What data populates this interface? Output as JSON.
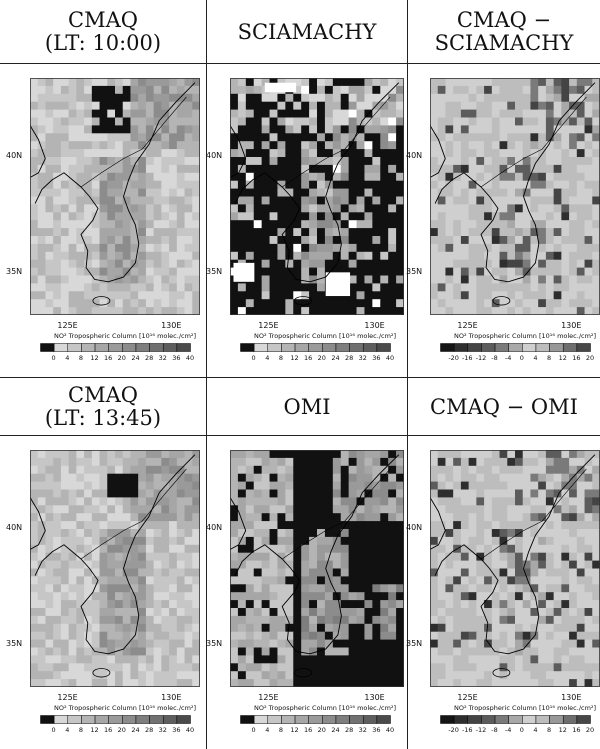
{
  "headers": {
    "row1": [
      "CMAQ\n(LT: 10:00)",
      "SCIAMACHY",
      "CMAQ −\nSCIAMACHY"
    ],
    "row2": [
      "CMAQ\n(LT: 13:45)",
      "OMI",
      "CMAQ − OMI"
    ]
  },
  "panels": [
    {
      "id": "cmaq-1000",
      "lat_labels": [
        "40N",
        "35N"
      ],
      "lon_labels": [
        "125E",
        "130E"
      ],
      "colorbar_title": "NO² Tropospheric Column [10¹⁶ molec./cm²]",
      "colorbar_ticks": [
        "0",
        "4",
        "8",
        "12",
        "16",
        "20",
        "24",
        "28",
        "32",
        "36",
        "40"
      ],
      "palette": "absolute",
      "style": "model"
    },
    {
      "id": "sciamachy",
      "lat_labels": [
        "40N",
        "35N"
      ],
      "lon_labels": [
        "125E",
        "130E"
      ],
      "colorbar_title": "NO² Tropospheric Column [10¹⁶ molec./cm²]",
      "colorbar_ticks": [
        "0",
        "4",
        "8",
        "12",
        "16",
        "20",
        "24",
        "28",
        "32",
        "36",
        "40"
      ],
      "palette": "absolute",
      "style": "satellite-sci"
    },
    {
      "id": "cmaq-minus-sciamachy",
      "lat_labels": [
        "40N",
        "35N"
      ],
      "lon_labels": [
        "125E",
        "130E"
      ],
      "colorbar_title": "NO² Tropospheric Column [10¹⁶ molec./cm²]",
      "colorbar_ticks": [
        "-20",
        "-16",
        "-12",
        "-8",
        "-4",
        "0",
        "4",
        "8",
        "12",
        "16",
        "20"
      ],
      "palette": "difference",
      "style": "diff"
    },
    {
      "id": "cmaq-1345",
      "lat_labels": [
        "40N",
        "35N"
      ],
      "lon_labels": [
        "125E",
        "130E"
      ],
      "colorbar_title": "NO² Tropospheric Column [10¹⁶ molec./cm²]",
      "colorbar_ticks": [
        "0",
        "4",
        "8",
        "12",
        "16",
        "20",
        "24",
        "28",
        "32",
        "36",
        "40"
      ],
      "palette": "absolute",
      "style": "model"
    },
    {
      "id": "omi",
      "lat_labels": [
        "40N",
        "35N"
      ],
      "lon_labels": [
        "125E",
        "130E"
      ],
      "colorbar_title": "NO² Tropospheric Column [10¹⁶ molec./cm²]",
      "colorbar_ticks": [
        "0",
        "4",
        "8",
        "12",
        "16",
        "20",
        "24",
        "28",
        "32",
        "36",
        "40"
      ],
      "palette": "absolute",
      "style": "satellite-omi"
    },
    {
      "id": "cmaq-minus-omi",
      "lat_labels": [
        "40N",
        "35N"
      ],
      "lon_labels": [
        "125E",
        "130E"
      ],
      "colorbar_title": "NO² Tropospheric Column [10¹⁶ molec./cm²]",
      "colorbar_ticks": [
        "-20",
        "-16",
        "-12",
        "-8",
        "-4",
        "0",
        "4",
        "8",
        "12",
        "16",
        "20"
      ],
      "palette": "difference",
      "style": "diff"
    }
  ],
  "colors": {
    "absolute": [
      "#111111",
      "#d8d8d8",
      "#c6c6c6",
      "#b4b4b4",
      "#a6a6a6",
      "#9a9a9a",
      "#8c8c8c",
      "#7e7e7e",
      "#707070",
      "#5e5e5e",
      "#4a4a4a"
    ],
    "difference": [
      "#151515",
      "#2e2e2e",
      "#444444",
      "#5c5c5c",
      "#7a7a7a",
      "#a8a8a8",
      "#cfcfcf",
      "#bdbdbd",
      "#989898",
      "#6e6e6e",
      "#474747"
    ]
  }
}
